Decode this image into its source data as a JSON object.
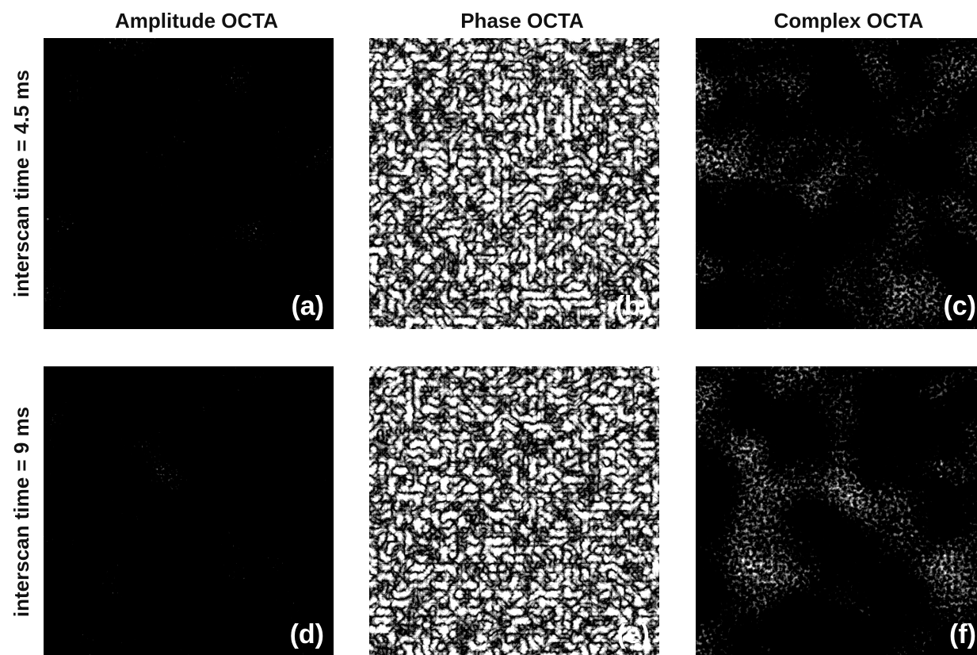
{
  "columns": [
    "Amplitude OCTA",
    "Phase OCTA",
    "Complex OCTA"
  ],
  "rows": [
    "interscan time = 4.5 ms",
    "interscan time = 9 ms"
  ],
  "panels": [
    [
      "(a)",
      "(b)",
      "(c)"
    ],
    [
      "(d)",
      "(e)",
      "(f)"
    ]
  ]
}
